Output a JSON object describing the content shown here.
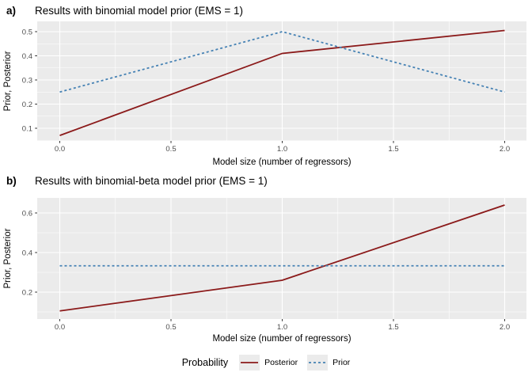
{
  "figure": {
    "legend": {
      "title": "Probability",
      "items": [
        {
          "label": "Posterior",
          "style": "solid",
          "color": "#8B1A1A"
        },
        {
          "label": "Prior",
          "style": "dashed",
          "color": "#4682B4"
        }
      ]
    }
  },
  "style": {
    "panel_bg": "#EBEBEB",
    "grid_color": "#FFFFFF",
    "tick_label_color": "#4D4D4D",
    "tick_mark_color": "#333333",
    "text_color": "#000000",
    "posterior_color": "#8B1A1A",
    "prior_color": "#4682B4"
  },
  "chart_data": [
    {
      "type": "line",
      "panel_tag": "a)",
      "title": "Results with binomial model prior (EMS = 1)",
      "xlabel": "Model size (number of regressors)",
      "ylabel": "Prior, Posterior",
      "x": [
        0,
        1,
        2
      ],
      "series": [
        {
          "name": "Posterior",
          "style": "solid",
          "color": "#8B1A1A",
          "values": [
            0.07,
            0.41,
            0.505
          ]
        },
        {
          "name": "Prior",
          "style": "dashed",
          "color": "#4682B4",
          "values": [
            0.25,
            0.5,
            0.25
          ]
        }
      ],
      "x_tick_values": [
        0,
        0.5,
        1,
        1.5,
        2
      ],
      "x_tick_labels": [
        "0.0",
        "0.5",
        "1.0",
        "1.5",
        "2.0"
      ],
      "y_tick_values": [
        0.1,
        0.2,
        0.3,
        0.4,
        0.5
      ],
      "y_tick_labels": [
        "0.1",
        "0.2",
        "0.3",
        "0.4",
        "0.5"
      ],
      "xlim": [
        -0.1,
        2.1
      ],
      "ylim": [
        0.05,
        0.54
      ],
      "grid": true,
      "legend_position": "bottom"
    },
    {
      "type": "line",
      "panel_tag": "b)",
      "title": "Results with binomial-beta model prior (EMS = 1)",
      "xlabel": "Model size (number of regressors)",
      "ylabel": "Prior, Posterior",
      "x": [
        0,
        1,
        2
      ],
      "series": [
        {
          "name": "Posterior",
          "style": "solid",
          "color": "#8B1A1A",
          "values": [
            0.105,
            0.26,
            0.64
          ]
        },
        {
          "name": "Prior",
          "style": "dashed",
          "color": "#4682B4",
          "values": [
            0.333,
            0.333,
            0.333
          ]
        }
      ],
      "x_tick_values": [
        0,
        0.5,
        1,
        1.5,
        2
      ],
      "x_tick_labels": [
        "0.0",
        "0.5",
        "1.0",
        "1.5",
        "2.0"
      ],
      "y_tick_values": [
        0.2,
        0.4,
        0.6
      ],
      "y_tick_labels": [
        "0.2",
        "0.4",
        "0.6"
      ],
      "xlim": [
        -0.1,
        2.1
      ],
      "ylim": [
        0.06,
        0.68
      ],
      "grid": true,
      "legend_position": "bottom"
    }
  ]
}
